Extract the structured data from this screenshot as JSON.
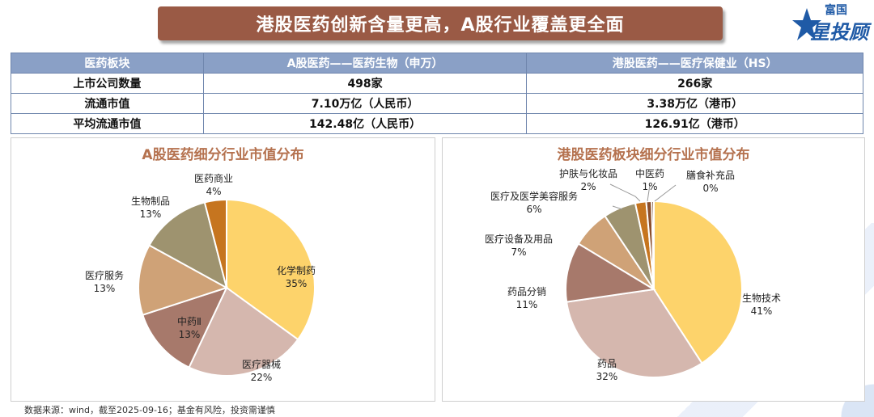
{
  "title": "港股医药创新含量更高，A股行业覆盖更全面",
  "logo": {
    "top": "富国",
    "main": "星投顾"
  },
  "table": {
    "headers": [
      "医药板块",
      "A股医药——医药生物（申万）",
      "港股医药——医疗保健业（HS）"
    ],
    "rows": [
      [
        "上市公司数量",
        "498家",
        "266家"
      ],
      [
        "流通市值",
        "7.10万亿（人民币）",
        "3.38万亿（港币）"
      ],
      [
        "平均流通市值",
        "142.48亿（人民币）",
        "126.91亿（港币）"
      ]
    ]
  },
  "chart_data": [
    {
      "type": "pie",
      "title": "A股医药细分行业市值分布",
      "slices": [
        {
          "label": "化学制药",
          "value": 35,
          "value_label": "35%",
          "color": "#fdd36b"
        },
        {
          "label": "医疗器械",
          "value": 22,
          "value_label": "22%",
          "color": "#d5b7ae"
        },
        {
          "label": "中药Ⅱ",
          "value": 13,
          "value_label": "13%",
          "color": "#a7796b"
        },
        {
          "label": "医疗服务",
          "value": 13,
          "value_label": "13%",
          "color": "#cfa277"
        },
        {
          "label": "生物制品",
          "value": 13,
          "value_label": "13%",
          "color": "#9e936f"
        },
        {
          "label": "医药商业",
          "value": 4,
          "value_label": "4%",
          "color": "#c6751f"
        }
      ]
    },
    {
      "type": "pie",
      "title": "港股医药板块细分行业市值分布",
      "slices": [
        {
          "label": "生物技术",
          "value": 41,
          "value_label": "41%",
          "color": "#fdd36b"
        },
        {
          "label": "药品",
          "value": 32,
          "value_label": "32%",
          "color": "#d5b7ae"
        },
        {
          "label": "药品分销",
          "value": 11,
          "value_label": "11%",
          "color": "#a7796b"
        },
        {
          "label": "医疗设备及用品",
          "value": 7,
          "value_label": "7%",
          "color": "#cfa277"
        },
        {
          "label": "医疗及医学美容服务",
          "value": 6,
          "value_label": "6%",
          "color": "#9e936f"
        },
        {
          "label": "护肤与化妆品",
          "value": 2,
          "value_label": "2%",
          "color": "#c6751f"
        },
        {
          "label": "中医药",
          "value": 1,
          "value_label": "1%",
          "color": "#8a4e2c"
        },
        {
          "label": "膳食补充品",
          "value": 0.4,
          "value_label": "0%",
          "color": "#6b3a1e"
        }
      ]
    }
  ],
  "footer": "数据来源：wind，截至2025-09-16；基金有风险，投资需谨慎"
}
